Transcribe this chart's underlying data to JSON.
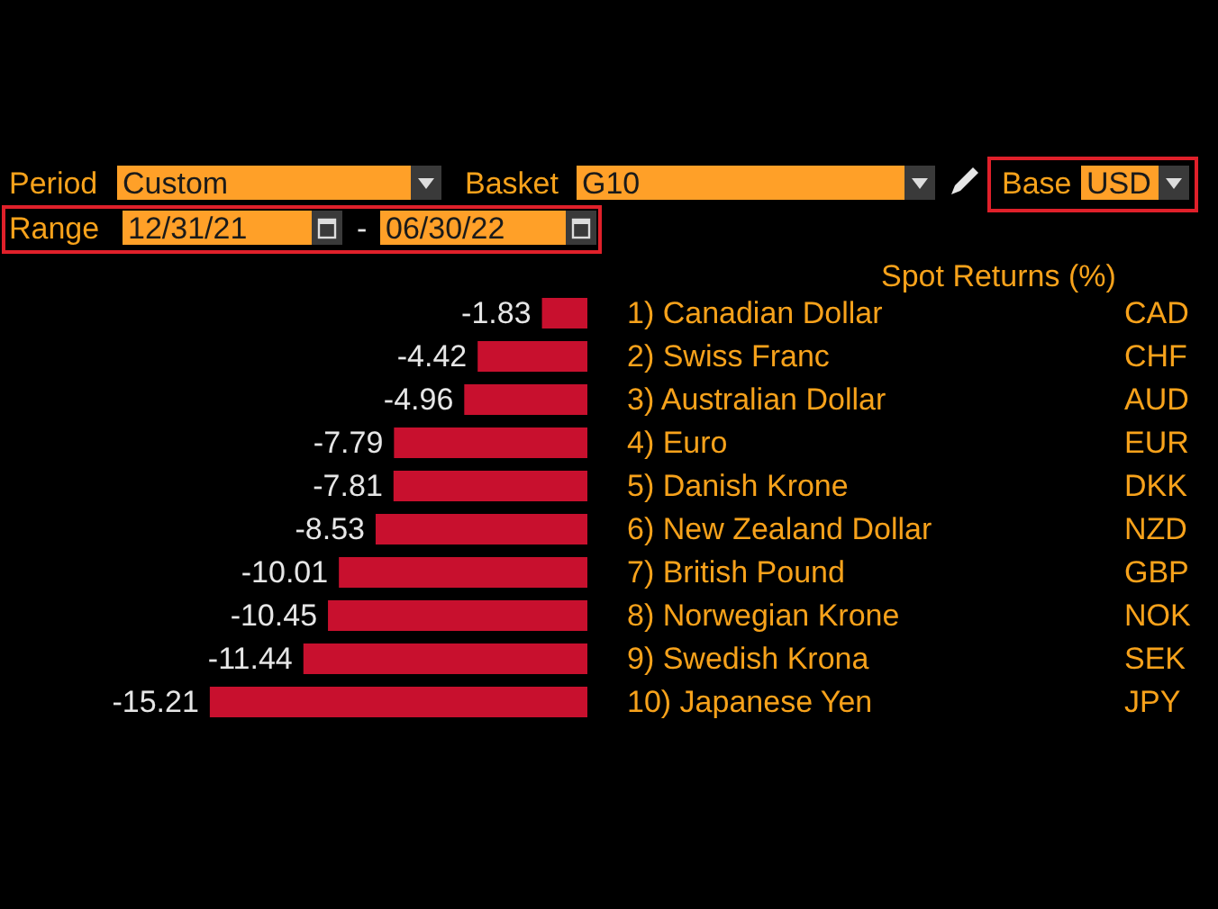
{
  "chart_data": {
    "type": "bar",
    "orientation": "horizontal",
    "title": "Spot Returns (%)",
    "annotations": [
      "Period",
      "Custom",
      "Basket",
      "G10",
      "Base",
      "USD",
      "Range",
      "12/31/21",
      "-",
      "06/30/22"
    ],
    "categories": [
      "1) Canadian Dollar",
      "2) Swiss Franc",
      "3) Australian Dollar",
      "4) Euro",
      "5) Danish Krone",
      "6) New Zealand Dollar",
      "7) British Pound",
      "8) Norwegian Krone",
      "9) Swedish Krona",
      "10) Japanese Yen"
    ],
    "y2_categories": [
      "CAD",
      "CHF",
      "AUD",
      "EUR",
      "DKK",
      "NZD",
      "GBP",
      "NOK",
      "SEK",
      "JPY"
    ],
    "values": [
      -1.83,
      -4.42,
      -4.96,
      -7.79,
      -7.81,
      -8.53,
      -10.01,
      -10.45,
      -11.44,
      -15.21
    ],
    "color": "#c8102e",
    "data_labels": true
  }
}
